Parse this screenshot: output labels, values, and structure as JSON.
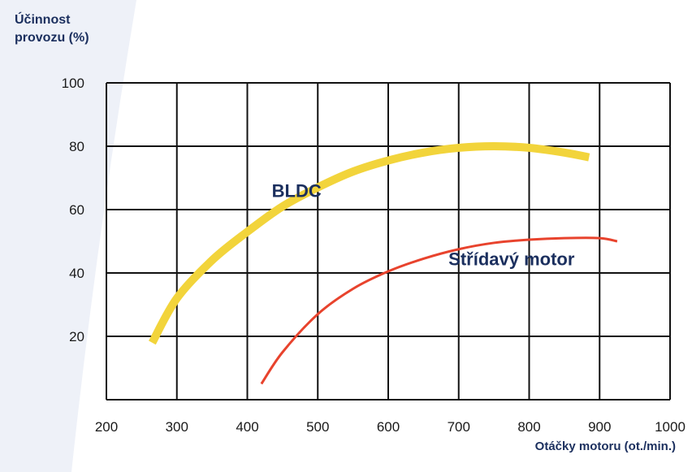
{
  "chart_data": {
    "type": "line",
    "ylabel_lines": [
      "Účinnost",
      "provozu (%)"
    ],
    "xlabel": "Otáčky motoru (ot./min.)",
    "xlim": [
      200,
      1000
    ],
    "ylim": [
      0,
      100
    ],
    "x_ticks": [
      200,
      300,
      400,
      500,
      600,
      700,
      800,
      900,
      1000
    ],
    "y_ticks": [
      20,
      40,
      60,
      80,
      100
    ],
    "grid": true,
    "series": [
      {
        "name": "BLDC",
        "color": "#f2d43b",
        "x": [
          265,
          300,
          350,
          400,
          450,
          500,
          550,
          600,
          650,
          700,
          750,
          800,
          850,
          885
        ],
        "y": [
          18,
          32,
          44,
          53,
          61,
          67,
          72,
          75.5,
          78,
          79.5,
          80,
          79.5,
          78,
          76.5
        ]
      },
      {
        "name": "Střídavý motor",
        "color": "#e8432d",
        "x": [
          420,
          450,
          500,
          550,
          600,
          650,
          700,
          750,
          800,
          850,
          900,
          925
        ],
        "y": [
          5,
          15,
          27,
          35,
          40.5,
          44.5,
          47.5,
          49.5,
          50.5,
          51,
          51,
          50
        ]
      }
    ]
  }
}
